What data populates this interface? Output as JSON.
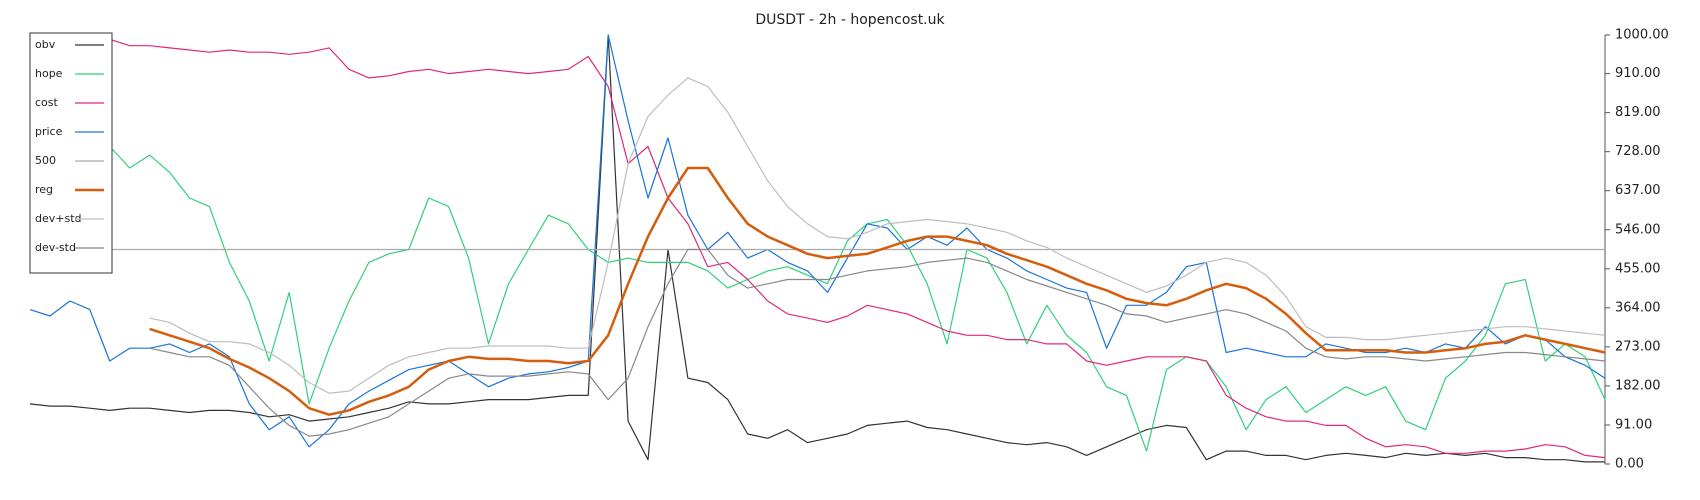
{
  "chart_data": {
    "type": "line",
    "title": "DUSDT - 2h - hopencost.uk",
    "ylim": [
      0,
      1000
    ],
    "yticks": [
      {
        "value": 0,
        "label": "0.00"
      },
      {
        "value": 91,
        "label": "91.00"
      },
      {
        "value": 182,
        "label": "182.00"
      },
      {
        "value": 273,
        "label": "273.00"
      },
      {
        "value": 364,
        "label": "364.00"
      },
      {
        "value": 455,
        "label": "455.00"
      },
      {
        "value": 546,
        "label": "546.00"
      },
      {
        "value": 637,
        "label": "637.00"
      },
      {
        "value": 728,
        "label": "728.00"
      },
      {
        "value": 819,
        "label": "819.00"
      },
      {
        "value": 910,
        "label": "910.00"
      },
      {
        "value": 1000,
        "label": "1000.00"
      }
    ],
    "legend": "upper left",
    "series": [
      {
        "name": "obv",
        "color": "#333333",
        "values": [
          140,
          135,
          135,
          130,
          125,
          130,
          130,
          125,
          120,
          125,
          125,
          120,
          110,
          115,
          100,
          105,
          110,
          120,
          130,
          145,
          140,
          140,
          145,
          150,
          150,
          150,
          155,
          160,
          160,
          1000,
          100,
          10,
          500,
          200,
          190,
          150,
          70,
          60,
          80,
          50,
          60,
          70,
          90,
          95,
          100,
          85,
          80,
          70,
          60,
          50,
          45,
          50,
          40,
          20,
          40,
          60,
          80,
          90,
          85,
          10,
          30,
          30,
          20,
          20,
          10,
          20,
          25,
          20,
          15,
          25,
          20,
          25,
          20,
          25,
          15,
          15,
          10,
          10,
          5,
          5
        ]
      },
      {
        "name": "hope",
        "color": "#2fd178",
        "values": [
          null,
          null,
          null,
          null,
          740,
          690,
          720,
          680,
          620,
          600,
          470,
          380,
          240,
          400,
          140,
          270,
          380,
          470,
          490,
          500,
          620,
          600,
          480,
          280,
          420,
          500,
          580,
          560,
          500,
          470,
          480,
          470,
          470,
          470,
          450,
          410,
          430,
          450,
          460,
          440,
          420,
          520,
          560,
          570,
          510,
          420,
          280,
          500,
          480,
          400,
          280,
          370,
          300,
          260,
          180,
          160,
          30,
          220,
          250,
          240,
          180,
          80,
          150,
          180,
          120,
          150,
          180,
          160,
          180,
          100,
          80,
          200,
          240,
          300,
          420,
          430,
          240,
          280,
          250,
          150
        ]
      },
      {
        "name": "cost",
        "color": "#e0287c",
        "values": [
          null,
          null,
          null,
          null,
          990,
          975,
          975,
          970,
          965,
          960,
          965,
          960,
          960,
          955,
          960,
          970,
          920,
          900,
          905,
          915,
          920,
          910,
          915,
          920,
          915,
          910,
          915,
          920,
          950,
          880,
          700,
          740,
          620,
          560,
          460,
          470,
          430,
          380,
          350,
          340,
          330,
          345,
          370,
          360,
          350,
          330,
          310,
          300,
          300,
          290,
          290,
          280,
          280,
          240,
          230,
          240,
          250,
          250,
          250,
          240,
          160,
          130,
          110,
          100,
          100,
          90,
          90,
          60,
          40,
          45,
          40,
          25,
          25,
          30,
          30,
          35,
          45,
          40,
          20,
          15
        ]
      },
      {
        "name": "price",
        "color": "#1a73d9",
        "values": [
          360,
          345,
          380,
          360,
          240,
          270,
          270,
          280,
          260,
          280,
          250,
          140,
          80,
          110,
          40,
          80,
          140,
          170,
          195,
          220,
          230,
          240,
          210,
          180,
          200,
          210,
          215,
          225,
          240,
          1000,
          800,
          620,
          760,
          580,
          500,
          540,
          480,
          500,
          470,
          450,
          400,
          480,
          560,
          550,
          500,
          530,
          510,
          550,
          500,
          480,
          450,
          430,
          410,
          400,
          270,
          370,
          370,
          400,
          460,
          470,
          260,
          270,
          260,
          250,
          250,
          280,
          270,
          260,
          260,
          270,
          260,
          280,
          270,
          320,
          280,
          300,
          290,
          250,
          230,
          200
        ]
      },
      {
        "name": "500",
        "color": "#aaaaaa",
        "values": [
          500,
          500,
          500,
          500,
          500,
          500,
          500,
          500,
          500,
          500,
          500,
          500,
          500,
          500,
          500,
          500,
          500,
          500,
          500,
          500,
          500,
          500,
          500,
          500,
          500,
          500,
          500,
          500,
          500,
          500,
          500,
          500,
          500,
          500,
          500,
          500,
          500,
          500,
          500,
          500,
          500,
          500,
          500,
          500,
          500,
          500,
          500,
          500,
          500,
          500,
          500,
          500,
          500,
          500,
          500,
          500,
          500,
          500,
          500,
          500,
          500,
          500,
          500,
          500,
          500,
          500,
          500,
          500,
          500,
          500,
          500,
          500,
          500,
          500,
          500,
          500,
          500,
          500,
          500,
          500
        ]
      },
      {
        "name": "reg",
        "color": "#d55d0e",
        "values": [
          null,
          null,
          null,
          null,
          null,
          null,
          315,
          300,
          285,
          270,
          245,
          225,
          200,
          170,
          130,
          115,
          125,
          145,
          160,
          180,
          220,
          240,
          250,
          245,
          245,
          240,
          240,
          235,
          240,
          300,
          420,
          530,
          620,
          690,
          690,
          620,
          560,
          530,
          510,
          490,
          480,
          485,
          490,
          505,
          520,
          530,
          530,
          520,
          510,
          490,
          475,
          460,
          440,
          420,
          405,
          385,
          375,
          370,
          385,
          405,
          420,
          410,
          385,
          350,
          305,
          265,
          265,
          265,
          265,
          260,
          260,
          265,
          270,
          280,
          285,
          300,
          290,
          280,
          270,
          260
        ]
      },
      {
        "name": "dev+std",
        "color": "#bdbdbd",
        "values": [
          null,
          null,
          null,
          null,
          null,
          null,
          340,
          330,
          305,
          285,
          285,
          280,
          260,
          230,
          190,
          165,
          170,
          200,
          230,
          250,
          260,
          270,
          270,
          275,
          275,
          275,
          275,
          270,
          270,
          470,
          700,
          810,
          860,
          900,
          880,
          820,
          740,
          660,
          600,
          560,
          530,
          525,
          540,
          560,
          565,
          570,
          565,
          560,
          550,
          540,
          520,
          505,
          480,
          460,
          440,
          420,
          400,
          415,
          440,
          470,
          480,
          470,
          440,
          390,
          320,
          295,
          295,
          290,
          290,
          295,
          300,
          305,
          310,
          315,
          320,
          320,
          315,
          310,
          305,
          300
        ]
      },
      {
        "name": "dev-std",
        "color": "#888888",
        "values": [
          null,
          null,
          null,
          null,
          null,
          null,
          270,
          260,
          250,
          250,
          230,
          180,
          130,
          90,
          65,
          70,
          80,
          95,
          110,
          140,
          170,
          200,
          210,
          205,
          205,
          205,
          210,
          215,
          210,
          150,
          200,
          320,
          420,
          500,
          500,
          440,
          410,
          420,
          430,
          430,
          430,
          440,
          450,
          455,
          460,
          470,
          475,
          480,
          470,
          450,
          430,
          415,
          400,
          385,
          370,
          350,
          345,
          330,
          340,
          350,
          360,
          350,
          330,
          310,
          270,
          250,
          245,
          250,
          250,
          245,
          240,
          245,
          250,
          255,
          260,
          260,
          255,
          250,
          245,
          240
        ]
      }
    ]
  }
}
